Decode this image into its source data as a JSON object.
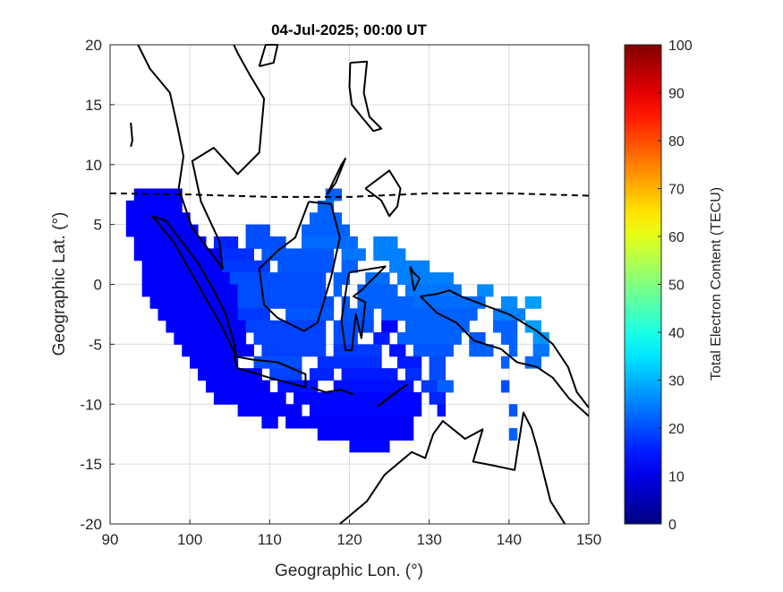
{
  "chart_data": {
    "type": "heatmap",
    "title": "04-Jul-2025; 00:00 UT",
    "xlabel": "Geographic Lon. (°)",
    "ylabel": "Geographic Lat. (°)",
    "xlim": [
      90,
      150
    ],
    "ylim": [
      -20,
      20
    ],
    "xticks": [
      90,
      100,
      110,
      120,
      130,
      140,
      150
    ],
    "yticks": [
      -20,
      -15,
      -10,
      -5,
      0,
      5,
      10,
      15,
      20
    ],
    "grid": true,
    "colorbar": {
      "label": "Total Electron Content (TECU)",
      "colormap": "jet",
      "limits": [
        0,
        100
      ],
      "ticks": [
        0,
        10,
        20,
        30,
        40,
        50,
        60,
        70,
        80,
        90,
        100
      ]
    },
    "cell_size_deg": 1,
    "tec_cells_by_lat": [
      {
        "lat": 7,
        "segments": [
          [
            93,
            99,
            12
          ],
          [
            117,
            119,
            22
          ]
        ]
      },
      {
        "lat": 6,
        "segments": [
          [
            92,
            99,
            12
          ],
          [
            116,
            118,
            22
          ]
        ]
      },
      {
        "lat": 5,
        "segments": [
          [
            92,
            100,
            12
          ],
          [
            115,
            119,
            22
          ]
        ]
      },
      {
        "lat": 4,
        "segments": [
          [
            92,
            101,
            12
          ],
          [
            107,
            110,
            20
          ],
          [
            114,
            120,
            22
          ]
        ]
      },
      {
        "lat": 3,
        "segments": [
          [
            93,
            102,
            12
          ],
          [
            103,
            106,
            16
          ],
          [
            107,
            112,
            20
          ],
          [
            114,
            121,
            23
          ],
          [
            123,
            126,
            25
          ]
        ]
      },
      {
        "lat": 2,
        "segments": [
          [
            93,
            104,
            12
          ],
          [
            104,
            108,
            17
          ],
          [
            109,
            118,
            21
          ],
          [
            119,
            122,
            24
          ],
          [
            123,
            127,
            25
          ]
        ]
      },
      {
        "lat": 1,
        "segments": [
          [
            94,
            104,
            12
          ],
          [
            104,
            110,
            18
          ],
          [
            111,
            118,
            21
          ],
          [
            119,
            121,
            22
          ],
          [
            125,
            130,
            25
          ]
        ]
      },
      {
        "lat": 0,
        "segments": [
          [
            94,
            105,
            12
          ],
          [
            105,
            117,
            20
          ],
          [
            118,
            120,
            22
          ],
          [
            122,
            125,
            23
          ],
          [
            126,
            133,
            25
          ]
        ]
      },
      {
        "lat": -1,
        "segments": [
          [
            94,
            106,
            12
          ],
          [
            106,
            117,
            20
          ],
          [
            118,
            119,
            22
          ],
          [
            121,
            126,
            22
          ],
          [
            127,
            134,
            24
          ],
          [
            136,
            138,
            26
          ]
        ]
      },
      {
        "lat": -2,
        "segments": [
          [
            95,
            106,
            12
          ],
          [
            106,
            118,
            20
          ],
          [
            119,
            120,
            21
          ],
          [
            121,
            128,
            22
          ],
          [
            128,
            137,
            23
          ],
          [
            139,
            141,
            26
          ],
          [
            142,
            144,
            28
          ]
        ]
      },
      {
        "lat": -3,
        "segments": [
          [
            96,
            106,
            12
          ],
          [
            106,
            110,
            18
          ],
          [
            112,
            118,
            21
          ],
          [
            119,
            123,
            21
          ],
          [
            124,
            136,
            22
          ],
          [
            138,
            142,
            25
          ]
        ]
      },
      {
        "lat": -4,
        "segments": [
          [
            97,
            107,
            12
          ],
          [
            107,
            117,
            19
          ],
          [
            118,
            123,
            20
          ],
          [
            124,
            126,
            13
          ],
          [
            127,
            135,
            22
          ],
          [
            138,
            141,
            22
          ],
          [
            142,
            144,
            28
          ]
        ]
      },
      {
        "lat": -5,
        "segments": [
          [
            98,
            107,
            12
          ],
          [
            108,
            117,
            19
          ],
          [
            118,
            121,
            20
          ],
          [
            123,
            125,
            15
          ],
          [
            126,
            134,
            22
          ],
          [
            135,
            137,
            21
          ],
          [
            139,
            141,
            22
          ],
          [
            143,
            145,
            27
          ]
        ]
      },
      {
        "lat": -6,
        "segments": [
          [
            99,
            108,
            12
          ],
          [
            109,
            117,
            19
          ],
          [
            118,
            124,
            18
          ],
          [
            125,
            127,
            14
          ],
          [
            128,
            133,
            21
          ],
          [
            135,
            138,
            22
          ],
          [
            140,
            141,
            22
          ],
          [
            143,
            145,
            24
          ]
        ]
      },
      {
        "lat": -7,
        "segments": [
          [
            100,
            106,
            12
          ],
          [
            108,
            114,
            20
          ],
          [
            116,
            124,
            17
          ],
          [
            126,
            129,
            15
          ],
          [
            130,
            132,
            20
          ],
          [
            139,
            140,
            22
          ],
          [
            142,
            144,
            23
          ]
        ]
      },
      {
        "lat": -8,
        "segments": [
          [
            101,
            109,
            12
          ],
          [
            110,
            114,
            19
          ],
          [
            115,
            118,
            16
          ],
          [
            119,
            126,
            15
          ],
          [
            127,
            129,
            17
          ],
          [
            130,
            132,
            20
          ]
        ]
      },
      {
        "lat": -9,
        "segments": [
          [
            102,
            110,
            12
          ],
          [
            111,
            116,
            14
          ],
          [
            118,
            128,
            14
          ],
          [
            129,
            131,
            18
          ],
          [
            131,
            133,
            22
          ],
          [
            139,
            140,
            20
          ]
        ]
      },
      {
        "lat": -10,
        "segments": [
          [
            103,
            112,
            12
          ],
          [
            113,
            129,
            13
          ],
          [
            130,
            132,
            16
          ]
        ]
      },
      {
        "lat": -11,
        "segments": [
          [
            106,
            114,
            12
          ],
          [
            115,
            129,
            13
          ],
          [
            131,
            132,
            14
          ],
          [
            140,
            141,
            21
          ]
        ]
      },
      {
        "lat": -12,
        "segments": [
          [
            109,
            111,
            13
          ],
          [
            112,
            128,
            12
          ]
        ]
      },
      {
        "lat": -13,
        "segments": [
          [
            116,
            128,
            12
          ],
          [
            140,
            141,
            22
          ]
        ]
      },
      {
        "lat": -14,
        "segments": [
          [
            120,
            125,
            13
          ]
        ]
      }
    ],
    "dip_equator": [
      [
        90,
        7.6
      ],
      [
        100,
        7.5
      ],
      [
        110,
        7.3
      ],
      [
        120,
        7.3
      ],
      [
        130,
        7.6
      ],
      [
        140,
        7.6
      ],
      [
        150,
        7.4
      ]
    ],
    "coastlines": [
      [
        [
          93.5,
          20
        ],
        [
          95,
          18
        ],
        [
          97.5,
          16
        ],
        [
          98.5,
          13
        ],
        [
          99.2,
          10.7
        ],
        [
          98.6,
          8
        ],
        [
          100.3,
          4.7
        ],
        [
          103.7,
          1.7
        ],
        [
          104.1,
          1.3
        ],
        [
          103.7,
          3.6
        ],
        [
          101.4,
          6.9
        ],
        [
          100.3,
          10.3
        ],
        [
          103,
          11.4
        ],
        [
          106,
          9.2
        ],
        [
          108.7,
          11
        ],
        [
          109.3,
          15.5
        ],
        [
          107.5,
          17.5
        ],
        [
          106,
          19.3
        ],
        [
          105.5,
          20
        ]
      ],
      [
        [
          95.3,
          5.7
        ],
        [
          98,
          3.5
        ],
        [
          101,
          0
        ],
        [
          104,
          -3.5
        ],
        [
          105.8,
          -6
        ],
        [
          105.6,
          -5
        ],
        [
          104.5,
          -2.5
        ],
        [
          103,
          -0.5
        ],
        [
          101,
          1.8
        ],
        [
          98.5,
          4
        ],
        [
          97,
          5.3
        ],
        [
          95.3,
          5.7
        ]
      ],
      [
        [
          114.9,
          6.9
        ],
        [
          117.7,
          6.7
        ],
        [
          118.8,
          3.9
        ],
        [
          117.7,
          0.6
        ],
        [
          116,
          -3.2
        ],
        [
          114.3,
          -3.9
        ],
        [
          111,
          -2.8
        ],
        [
          109.3,
          -1.7
        ],
        [
          108.7,
          1.3
        ],
        [
          111,
          2.8
        ],
        [
          113.2,
          3.9
        ],
        [
          114.9,
          6.9
        ]
      ],
      [
        [
          105.5,
          -6
        ],
        [
          106,
          -7
        ],
        [
          110,
          -7.8
        ],
        [
          114.5,
          -8.6
        ],
        [
          114.5,
          -7.5
        ],
        [
          111,
          -6.5
        ],
        [
          108,
          -6.3
        ],
        [
          105.5,
          -6
        ]
      ],
      [
        [
          115.2,
          -8.6
        ],
        [
          117,
          -9
        ],
        [
          119,
          -8.8
        ],
        [
          120.5,
          -9.2
        ]
      ],
      [
        [
          123.5,
          -10.2
        ],
        [
          125.5,
          -9.2
        ],
        [
          127.2,
          -8.4
        ],
        [
          125,
          -9.4
        ],
        [
          123.5,
          -10.2
        ]
      ],
      [
        [
          120,
          1
        ],
        [
          124.5,
          1.5
        ],
        [
          121.5,
          -0.5
        ],
        [
          120.5,
          -1
        ],
        [
          122,
          -1.5
        ],
        [
          121.5,
          -4.5
        ],
        [
          120.8,
          -2.5
        ],
        [
          120.3,
          -5.5
        ],
        [
          119.5,
          -5.5
        ],
        [
          119,
          -3
        ],
        [
          119.8,
          0.5
        ],
        [
          120,
          1
        ]
      ],
      [
        [
          128.9,
          -1
        ],
        [
          131,
          -0.8
        ],
        [
          132.5,
          -0.5
        ],
        [
          134,
          -1
        ],
        [
          136.7,
          -1.7
        ],
        [
          140,
          -2.5
        ],
        [
          143.5,
          -3.9
        ],
        [
          145.5,
          -5
        ],
        [
          147.4,
          -6.9
        ],
        [
          148.5,
          -9
        ],
        [
          150,
          -10.3
        ]
      ],
      [
        [
          150,
          -11
        ],
        [
          147.5,
          -9.5
        ],
        [
          145.5,
          -7.8
        ],
        [
          143.5,
          -6.9
        ],
        [
          141,
          -6.5
        ],
        [
          139,
          -5.4
        ],
        [
          135.6,
          -4.7
        ],
        [
          133.4,
          -3.2
        ],
        [
          131,
          -2.4
        ],
        [
          128.9,
          -1
        ]
      ],
      [
        [
          118.8,
          -20
        ],
        [
          122.2,
          -18.1
        ],
        [
          124.4,
          -15.9
        ],
        [
          127.8,
          -14
        ],
        [
          129.5,
          -14.5
        ],
        [
          130.5,
          -12.5
        ],
        [
          131.7,
          -11.4
        ],
        [
          134.5,
          -12.9
        ],
        [
          136.7,
          -12.1
        ],
        [
          135.5,
          -14.8
        ],
        [
          137.9,
          -15.1
        ],
        [
          140.7,
          -15.5
        ],
        [
          141.8,
          -10.7
        ],
        [
          142.8,
          -12
        ],
        [
          143.5,
          -13.6
        ],
        [
          145.2,
          -18.1
        ],
        [
          147,
          -20
        ]
      ],
      [
        [
          120.1,
          18.5
        ],
        [
          122.2,
          18.6
        ],
        [
          121.8,
          16
        ],
        [
          122.5,
          14
        ],
        [
          124,
          13
        ],
        [
          123,
          12.8
        ],
        [
          121.5,
          14
        ],
        [
          120.3,
          15
        ],
        [
          120,
          16.5
        ],
        [
          120.1,
          18.5
        ]
      ],
      [
        [
          122,
          8
        ],
        [
          125,
          9.5
        ],
        [
          126.4,
          8
        ],
        [
          126,
          6.5
        ],
        [
          125,
          5.7
        ],
        [
          124,
          7
        ],
        [
          122,
          8
        ]
      ],
      [
        [
          117.2,
          7.5
        ],
        [
          118.3,
          8.5
        ],
        [
          119.5,
          10.5
        ],
        [
          119,
          10
        ],
        [
          117.2,
          7.5
        ]
      ],
      [
        [
          127.6,
          1.5
        ],
        [
          128.1,
          -0.5
        ],
        [
          128.8,
          0.5
        ],
        [
          128,
          1
        ],
        [
          127.6,
          1.5
        ]
      ],
      [
        [
          108.7,
          18.2
        ],
        [
          110.5,
          18.5
        ],
        [
          111,
          20
        ],
        [
          109.5,
          20
        ],
        [
          108.7,
          18.2
        ]
      ],
      [
        [
          92.6,
          13.5
        ],
        [
          92.8,
          12
        ],
        [
          92.6,
          11.5
        ]
      ]
    ]
  }
}
